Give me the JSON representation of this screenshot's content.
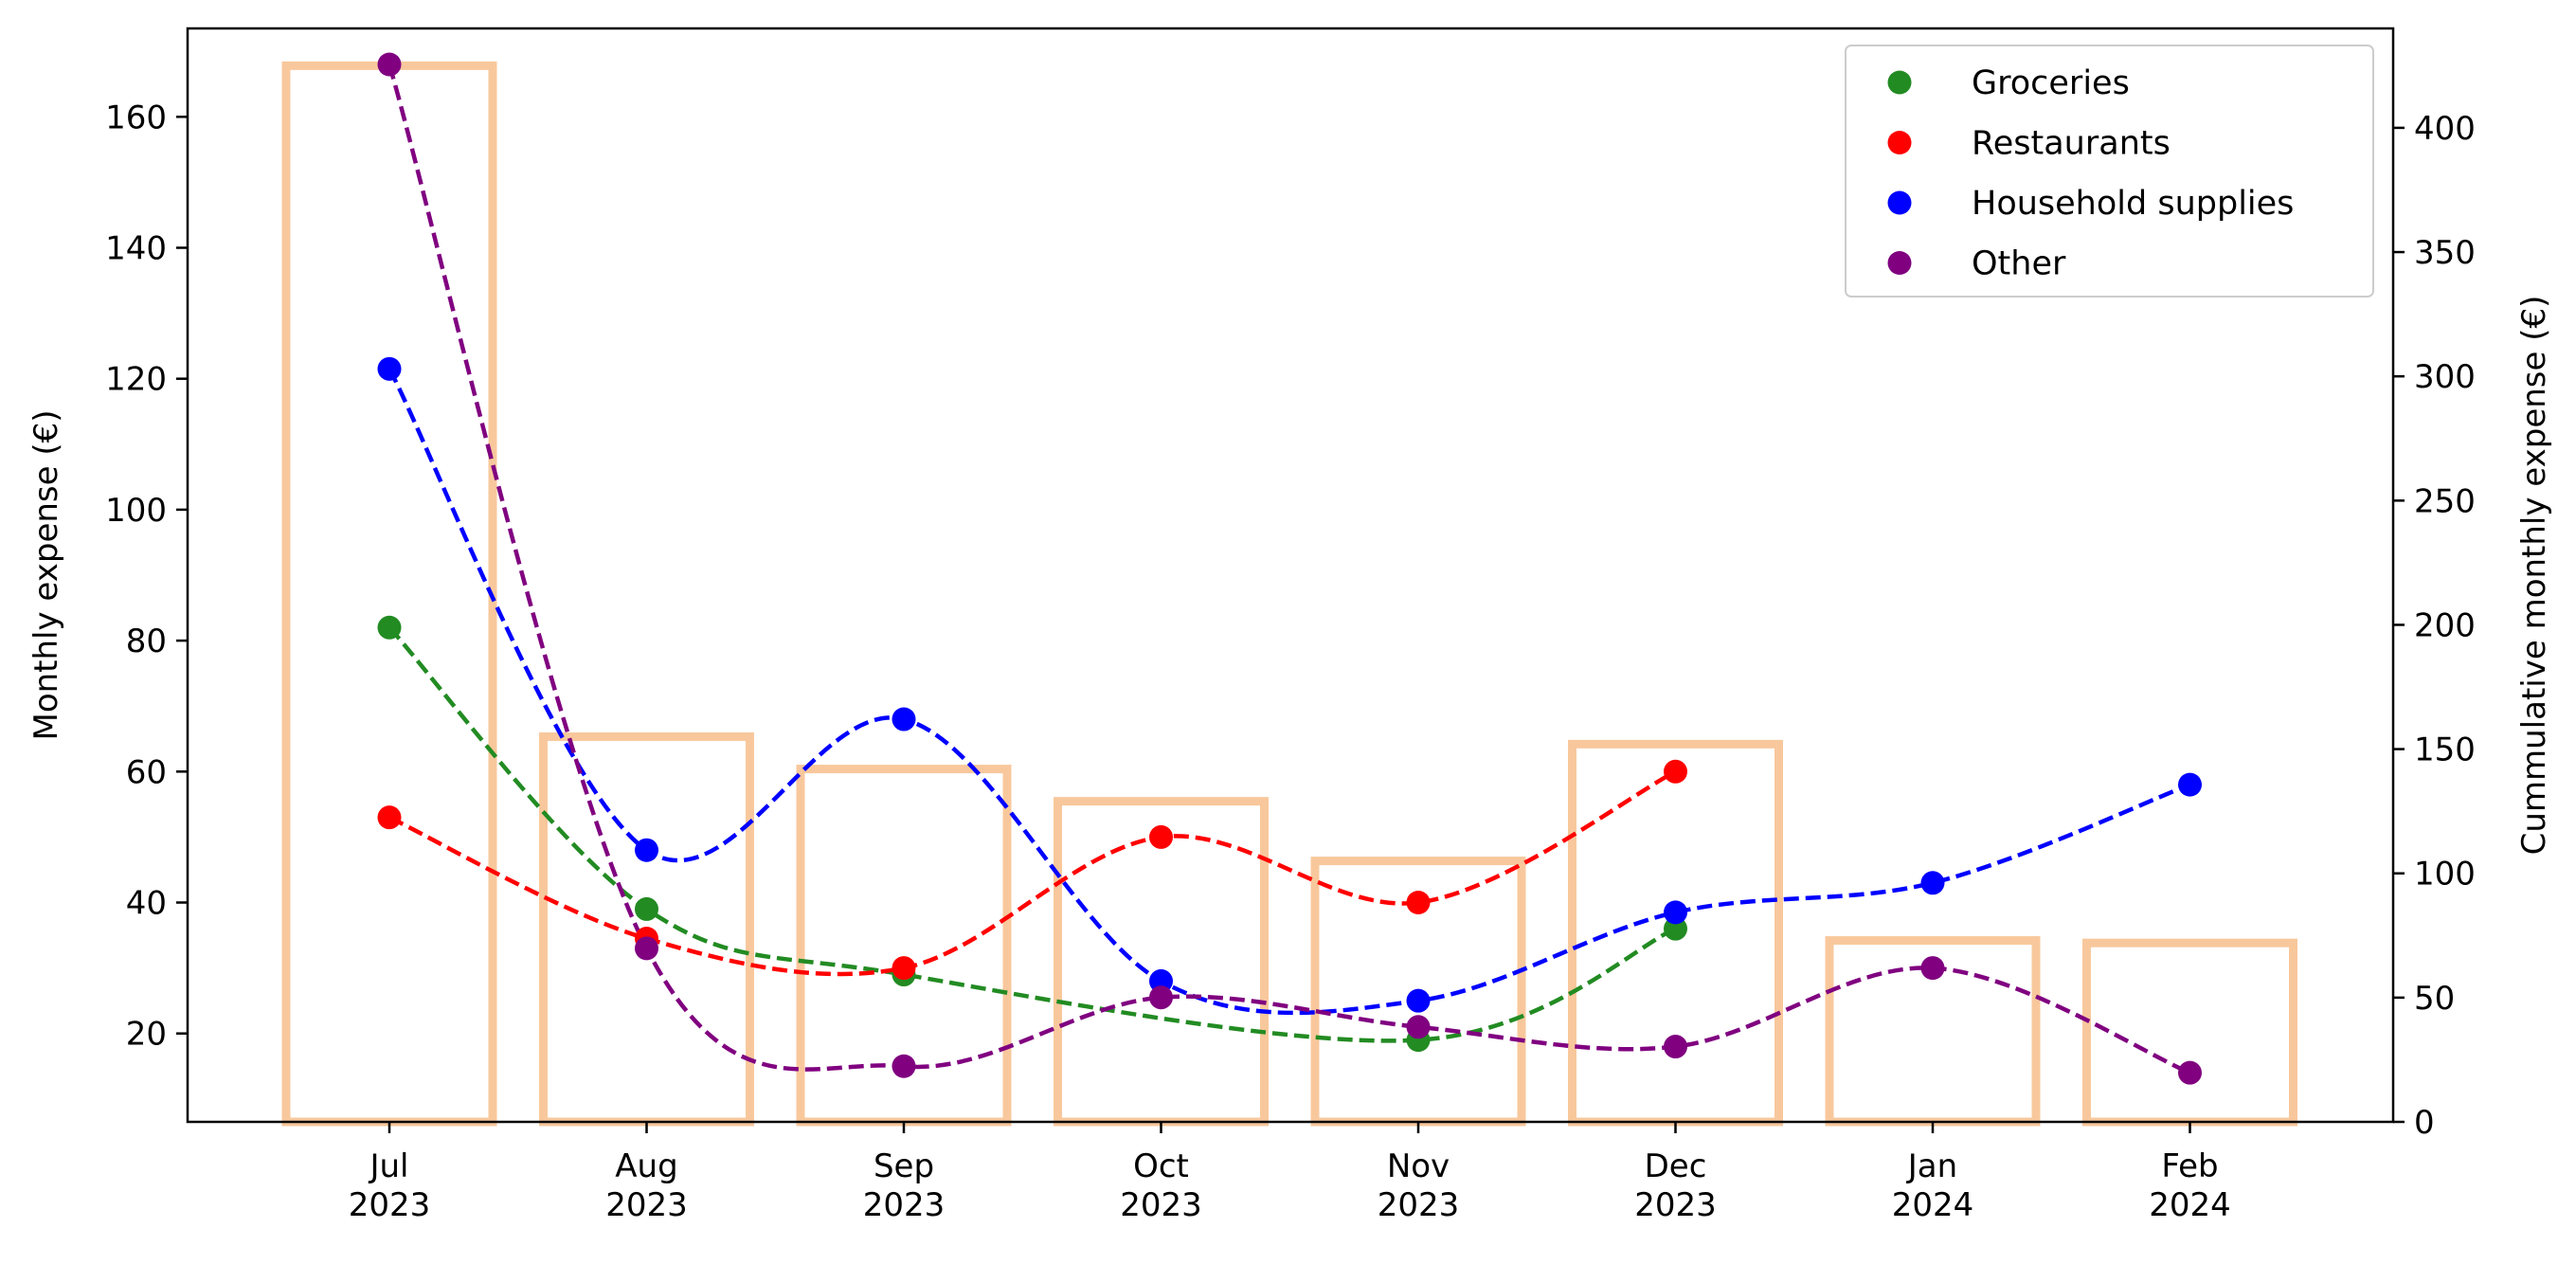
{
  "chart_data": {
    "type": "bar+line",
    "categories": [
      "Jul\n2023",
      "Aug\n2023",
      "Sep\n2023",
      "Oct\n2023",
      "Nov\n2023",
      "Dec\n2023",
      "Jan\n2024",
      "Feb\n2024"
    ],
    "ylabel_left": "Monthly expense (€)",
    "ylabel_right": "Cummulative monthly expense (€)",
    "ylim_left": [
      6.5,
      173.5
    ],
    "ylim_right": [
      0,
      440
    ],
    "yticks_left": [
      20,
      40,
      60,
      80,
      100,
      120,
      140,
      160
    ],
    "yticks_right": [
      0,
      50,
      100,
      150,
      200,
      250,
      300,
      350,
      400
    ],
    "bars": {
      "axis": "right",
      "color": "#f8c89c",
      "style": "outline",
      "values": [
        425,
        155,
        142,
        129,
        105,
        152,
        73,
        72
      ]
    },
    "series": [
      {
        "name": "Groceries",
        "color": "#228b22",
        "points": [
          [
            0,
            82
          ],
          [
            1,
            39
          ],
          [
            2,
            29
          ],
          [
            4,
            19
          ],
          [
            5,
            36
          ]
        ]
      },
      {
        "name": "Restaurants",
        "color": "#ff0000",
        "points": [
          [
            0,
            53
          ],
          [
            1,
            34.5
          ],
          [
            2,
            30
          ],
          [
            3,
            50
          ],
          [
            4,
            40
          ],
          [
            5,
            60
          ]
        ]
      },
      {
        "name": "Household supplies",
        "color": "#0000ff",
        "points": [
          [
            0,
            121.5
          ],
          [
            1,
            48
          ],
          [
            2,
            68
          ],
          [
            3,
            28
          ],
          [
            4,
            25
          ],
          [
            5,
            38.5
          ],
          [
            6,
            43
          ],
          [
            7,
            58
          ]
        ]
      },
      {
        "name": "Other",
        "color": "#800080",
        "points": [
          [
            0,
            168
          ],
          [
            1,
            33
          ],
          [
            2,
            15
          ],
          [
            3,
            25.5
          ],
          [
            4,
            21
          ],
          [
            5,
            18
          ],
          [
            6,
            30
          ],
          [
            7,
            14
          ]
        ]
      }
    ],
    "line_style": "dashed smooth",
    "legend_position": "upper-right",
    "grid": false
  }
}
